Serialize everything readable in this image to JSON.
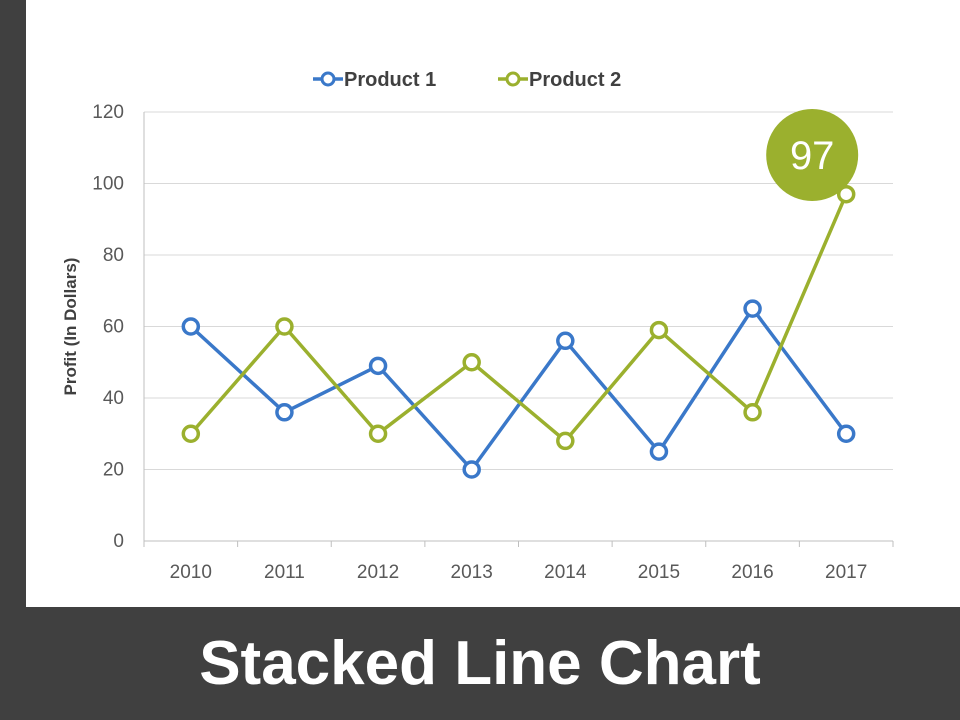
{
  "colors": {
    "background": "#404040",
    "panel": "#ffffff",
    "product1": "#3A78C9",
    "product2": "#9BB02E",
    "grid": "#D9D9D9",
    "axis": "#BFBFBF",
    "text": "#595959"
  },
  "footer": {
    "title": "Stacked Line Chart"
  },
  "chart_data": {
    "type": "line",
    "title": "",
    "xlabel": "",
    "ylabel": "Profit (In Dollars)",
    "categories": [
      "2010",
      "2011",
      "2012",
      "2013",
      "2014",
      "2015",
      "2016",
      "2017"
    ],
    "series": [
      {
        "name": "Product 1",
        "color": "#3A78C9",
        "values": [
          60,
          36,
          49,
          20,
          56,
          25,
          65,
          30
        ]
      },
      {
        "name": "Product 2",
        "color": "#9BB02E",
        "values": [
          30,
          60,
          30,
          50,
          28,
          59,
          36,
          97
        ]
      }
    ],
    "ylim": [
      0,
      120
    ],
    "yticks": [
      0,
      20,
      40,
      60,
      80,
      100,
      120
    ],
    "grid": true,
    "legend": "top-center",
    "annotations": [
      {
        "text": "97",
        "series": "Product 2",
        "category": "2017"
      }
    ]
  }
}
